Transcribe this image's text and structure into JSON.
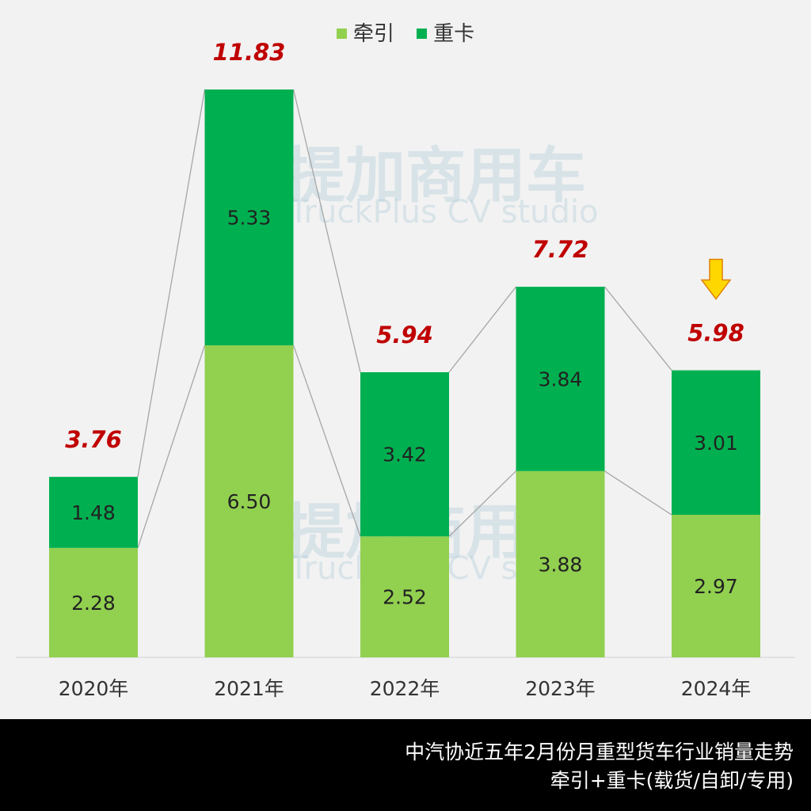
{
  "chart_data": {
    "type": "bar",
    "stacked": true,
    "categories": [
      "2020年",
      "2021年",
      "2022年",
      "2023年",
      "2024年"
    ],
    "series": [
      {
        "name": "牵引",
        "values": [
          2.28,
          6.5,
          2.52,
          3.88,
          2.97
        ],
        "color": "#92d050"
      },
      {
        "name": "重卡",
        "values": [
          1.48,
          5.33,
          3.42,
          3.84,
          3.01
        ],
        "color": "#00b050"
      }
    ],
    "totals": [
      "3.76",
      "11.83",
      "5.94",
      "7.72",
      "5.98"
    ],
    "segment_labels": [
      [
        "2.28",
        "6.50",
        "2.52",
        "3.88",
        "2.97"
      ],
      [
        "1.48",
        "5.33",
        "3.42",
        "3.84",
        "3.01"
      ]
    ],
    "total_label_color": "#c00000",
    "ylim": [
      0,
      11.83
    ],
    "grid": false,
    "legend_position": "top",
    "annotation": {
      "type": "down-arrow",
      "category": "2024年",
      "color": "#ffd700"
    }
  },
  "footer": {
    "line1": "中汽协近五年2月份月重型货车行业销量走势",
    "line2": "牵引+重卡(载货/自卸/专用)"
  },
  "watermark": {
    "cn": "提加商用车",
    "en": "TruckPlus CV studio"
  }
}
